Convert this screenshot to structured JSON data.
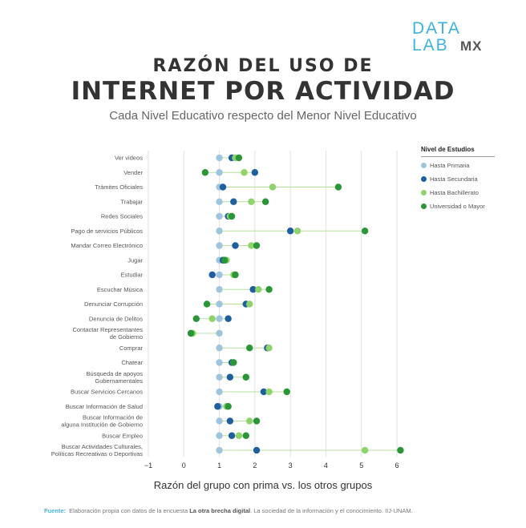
{
  "logo": {
    "line1": "DATA",
    "line2": "LAB",
    "line3": "MX"
  },
  "header": {
    "title_line1": "RAZÓN DEL USO DE",
    "title_line2": "INTERNET POR ACTIVIDAD",
    "subtitle": "Cada Nivel Educativo respecto del Menor Nivel Educativo"
  },
  "legend": {
    "title": "Nivel de Estudios",
    "items": [
      {
        "label": "Hasta Primaria",
        "color": "#9fc5de"
      },
      {
        "label": "Hasta Secundaria",
        "color": "#1f5fa0"
      },
      {
        "label": "Hasta Bachillerato",
        "color": "#8fd46a"
      },
      {
        "label": "Universidad o Mayor",
        "color": "#2a9637"
      }
    ]
  },
  "footer": {
    "fuente_label": "Fuente:",
    "text_before": "Elaboración propia con datos de la encuesta",
    "text_bold": "La otra brecha digital",
    "text_after": ". La sociedad de la información y el conocimiento. IIJ-UNAM."
  },
  "chart_data": {
    "type": "dot-plot",
    "xlabel": "Razón del grupo con prima vs. los otros grupos",
    "xlim": [
      -1,
      6
    ],
    "xticks": [
      -1,
      0,
      1,
      2,
      3,
      4,
      5,
      6
    ],
    "grid": "vertical",
    "legend_position": "right",
    "series_names": [
      "Hasta Primaria",
      "Hasta Secundaria",
      "Hasta Bachillerato",
      "Universidad o Mayor"
    ],
    "categories": [
      {
        "label": [
          "Ver videos"
        ],
        "values": [
          1,
          1.35,
          1.45,
          1.55
        ]
      },
      {
        "label": [
          "Vender"
        ],
        "values": [
          1,
          2.0,
          1.7,
          0.6
        ]
      },
      {
        "label": [
          "Trámites Oficiales"
        ],
        "values": [
          1,
          1.1,
          2.5,
          4.35
        ]
      },
      {
        "label": [
          "Trabajar"
        ],
        "values": [
          1,
          1.4,
          1.9,
          2.3
        ]
      },
      {
        "label": [
          "Redes Sociales"
        ],
        "values": [
          1,
          1.25,
          1.3,
          1.35
        ]
      },
      {
        "label": [
          "Pago de servicios Públicos"
        ],
        "values": [
          1,
          3.0,
          3.2,
          5.1
        ]
      },
      {
        "label": [
          "Mandar Correo Electrónico"
        ],
        "values": [
          1,
          1.45,
          1.9,
          2.05
        ]
      },
      {
        "label": [
          "Jugar"
        ],
        "values": [
          1,
          1.1,
          1.2,
          1.15
        ]
      },
      {
        "label": [
          "Estudiar"
        ],
        "values": [
          1,
          0.8,
          1.4,
          1.45
        ]
      },
      {
        "label": [
          "Escuchar Música"
        ],
        "values": [
          1,
          1.95,
          2.1,
          2.4
        ]
      },
      {
        "label": [
          "Denunciar Corrupción"
        ],
        "values": [
          1,
          1.75,
          1.85,
          0.65
        ]
      },
      {
        "label": [
          "Denuncia de Delitos"
        ],
        "values": [
          1,
          1.25,
          0.8,
          0.35
        ]
      },
      {
        "label": [
          "Contactar Representantes",
          "de Gobierno"
        ],
        "values": [
          1,
          0.2,
          0.25,
          0.2
        ]
      },
      {
        "label": [
          "Comprar"
        ],
        "values": [
          1,
          2.35,
          2.4,
          1.85
        ]
      },
      {
        "label": [
          "Chatear"
        ],
        "values": [
          1,
          1.35,
          1.4,
          1.4
        ]
      },
      {
        "label": [
          "Búsqueda de apoyos",
          "Gubernamentales"
        ],
        "values": [
          1,
          1.3,
          1.75,
          1.75
        ]
      },
      {
        "label": [
          "Buscar Servicios Cercanos"
        ],
        "values": [
          1,
          2.25,
          2.4,
          2.9
        ]
      },
      {
        "label": [
          "Buscar Información de Salud"
        ],
        "values": [
          1,
          0.95,
          1.2,
          1.25
        ]
      },
      {
        "label": [
          "Buscar Información de",
          "alguna Institución de Gobierno"
        ],
        "values": [
          1,
          1.3,
          1.85,
          2.05
        ]
      },
      {
        "label": [
          "Buscar Empleo"
        ],
        "values": [
          1,
          1.35,
          1.55,
          1.75
        ]
      },
      {
        "label": [
          "Buscar Actividades Culturales,",
          "Políticas Recreativas o Deportivas"
        ],
        "values": [
          1,
          2.05,
          5.1,
          6.1
        ]
      }
    ]
  }
}
